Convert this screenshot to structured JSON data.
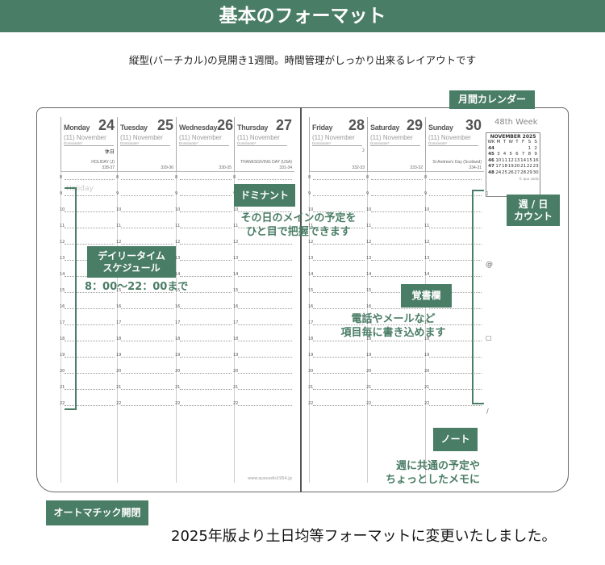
{
  "header": {
    "title": "基本のフォーマット"
  },
  "subtitle": "縦型(バーチカル)の見開き1週間。時間管理がしっかり出来るレイアウトです",
  "planner": {
    "days": [
      {
        "name": "Monday",
        "num": "24",
        "month": "(11) November",
        "dominante": "Dominante*",
        "extra": "休日",
        "note": "HOLIDAY (J)",
        "count": "328-37"
      },
      {
        "name": "Tuesday",
        "num": "25",
        "month": "(11) November",
        "dominante": "Dominante*",
        "extra": "",
        "note": "",
        "count": "329-36"
      },
      {
        "name": "Wednesday",
        "num": "26",
        "month": "(11) November",
        "dominante": "Dominante*",
        "extra": "",
        "note": "",
        "count": "330-35"
      },
      {
        "name": "Thursday",
        "num": "27",
        "month": "(11) November",
        "dominante": "Dominante*",
        "extra": "",
        "note": "THANKSGIVING DAY (USA)",
        "count": "331-34"
      },
      {
        "name": "Friday",
        "num": "28",
        "month": "(11) November",
        "dominante": "Dominante*",
        "extra": "☽",
        "note": "",
        "count": "332-33"
      },
      {
        "name": "Saturday",
        "num": "29",
        "month": "(11) November",
        "dominante": "Dominante*",
        "extra": "",
        "note": "",
        "count": "333-32"
      },
      {
        "name": "Sunday",
        "num": "30",
        "month": "(11) November",
        "dominante": "Dominante*",
        "extra": "",
        "note": "St Andrew's Day (Scotland)",
        "count": "334-31"
      }
    ],
    "hours": [
      "8",
      "9",
      "10",
      "11",
      "12",
      "13",
      "14",
      "15",
      "16",
      "17",
      "18",
      "19",
      "20",
      "21",
      "22"
    ],
    "holiday_watermark": "Holiday",
    "week_label": "48th Week",
    "calendar": {
      "title": "NOVEMBER 2025",
      "headers": [
        "WK",
        "M",
        "T",
        "W",
        "T",
        "F",
        "S",
        "S"
      ],
      "rows": [
        [
          "44",
          "",
          "",
          "",
          "",
          "",
          "1",
          "2"
        ],
        [
          "45",
          "3",
          "4",
          "5",
          "6",
          "7",
          "8",
          "9"
        ],
        [
          "46",
          "10",
          "11",
          "12",
          "13",
          "14",
          "15",
          "16"
        ],
        [
          "47",
          "17",
          "18",
          "19",
          "20",
          "21",
          "22",
          "23"
        ],
        [
          "48",
          "24",
          "25",
          "26",
          "27",
          "28",
          "29",
          "30"
        ]
      ],
      "brand": "© quo vadis"
    },
    "memo_icons": [
      "phone-icon",
      "at-icon",
      "document-icon",
      "pen-icon"
    ],
    "url": "www.quovadis1954.jp"
  },
  "callouts": {
    "monthly_calendar": "月間カレンダー",
    "dominant": "ドミナント",
    "dominant_desc": [
      "その日のメインの予定を",
      "ひと目で把握できます"
    ],
    "week_day_count": [
      "週 / 日",
      "カウント"
    ],
    "daily_schedule": [
      "デイリータイム",
      "スケジュール"
    ],
    "daily_hours": "8：00～22：00まで",
    "memo": "覚書欄",
    "memo_desc": [
      "電話やメールなど",
      "項目毎に書き込めます"
    ],
    "note": "ノート",
    "note_desc": [
      "週に共通の予定や",
      "ちょっとしたメモに"
    ],
    "auto_open": "オートマチック開閉"
  },
  "footer_text": "2025年版より土日均等フォーマットに変更いたしました。",
  "colors": {
    "accent": "#4a7d66"
  }
}
